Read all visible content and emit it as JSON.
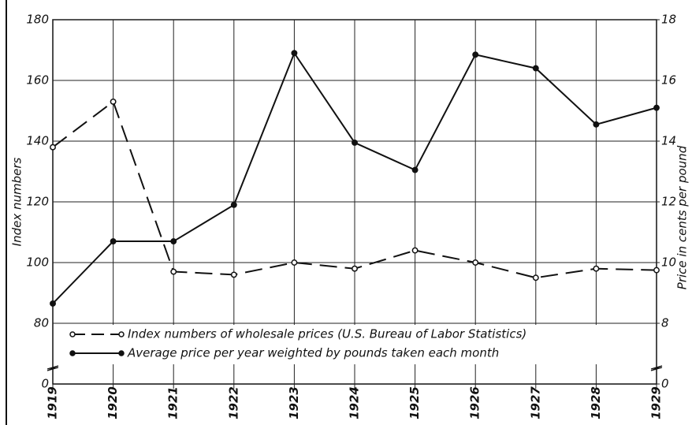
{
  "chart_data": {
    "type": "line",
    "y_label": "Index numbers",
    "y2_label": "Price in cents per pound",
    "categories": [
      "1919",
      "1920",
      "1921",
      "1922",
      "1923",
      "1924",
      "1925",
      "1926",
      "1927",
      "1928",
      "1929"
    ],
    "series": [
      {
        "name": "Index numbers of wholesale prices (U.S. Bureau of Labor Statistics)",
        "color": "#111111",
        "style": "dashed",
        "marker": "open",
        "axis": "y",
        "values": [
          138,
          153,
          97,
          96,
          100,
          98,
          104,
          100,
          95,
          98,
          97.5
        ]
      },
      {
        "name": "Average price per year weighted by pounds taken each month",
        "color": "#111111",
        "style": "solid",
        "marker": "filled",
        "axis": "y2",
        "values": [
          8.65,
          10.7,
          10.7,
          11.9,
          16.9,
          13.95,
          13.05,
          16.85,
          16.4,
          14.55,
          15.1
        ]
      }
    ],
    "ylim": [
      0,
      180
    ],
    "yticks": [
      0,
      80,
      100,
      120,
      140,
      160,
      180
    ],
    "y2lim": [
      0,
      18
    ],
    "y2ticks": [
      0,
      8,
      10,
      12,
      14,
      16,
      18
    ],
    "axis_break": true,
    "grid": true
  }
}
